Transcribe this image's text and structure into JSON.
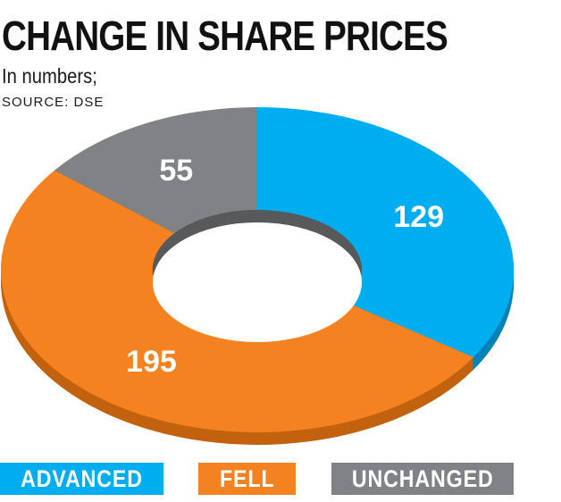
{
  "header": {
    "title": "CHANGE IN SHARE PRICES",
    "subtitle": "In numbers;",
    "source": "SOURCE: DSE"
  },
  "chart_data": {
    "type": "pie",
    "style": "3d-donut",
    "title": "CHANGE IN SHARE PRICES",
    "subtitle": "In numbers;",
    "source": "SOURCE: DSE",
    "categories": [
      "ADVANCED",
      "FELL",
      "UNCHANGED"
    ],
    "values": [
      129,
      195,
      55
    ],
    "colors": [
      "#00aeef",
      "#f58220",
      "#808285"
    ],
    "shadow_colors": [
      "#0083b8",
      "#c2620f",
      "#58595b"
    ],
    "legend_placement": "bottom",
    "data_labels": true
  }
}
